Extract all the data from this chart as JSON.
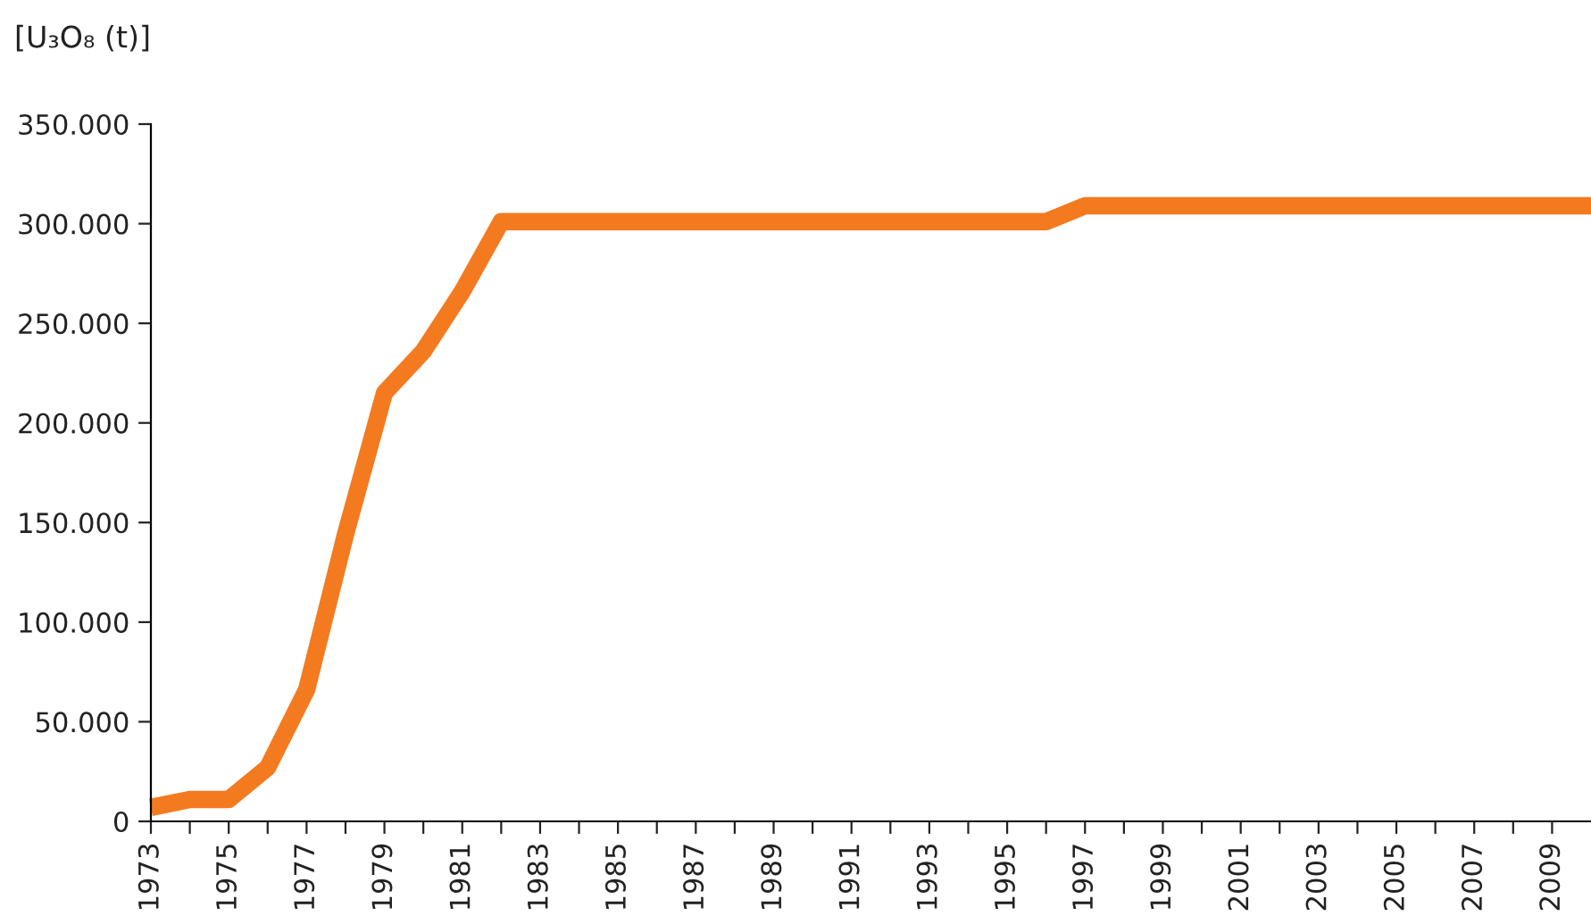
{
  "chart_data": {
    "type": "line",
    "ylabel": "[U₃O₈ (t)]",
    "x": [
      1973,
      1974,
      1975,
      1976,
      1977,
      1978,
      1979,
      1980,
      1981,
      1982,
      1983,
      1984,
      1985,
      1986,
      1987,
      1988,
      1989,
      1990,
      1991,
      1992,
      1993,
      1994,
      1995,
      1996,
      1997,
      1998,
      1999,
      2000,
      2001,
      2002,
      2003,
      2004,
      2005,
      2006,
      2007,
      2008,
      2009,
      2010
    ],
    "series": [
      {
        "color": "#f47a20",
        "values": [
          7000,
          11000,
          11000,
          27000,
          66000,
          144000,
          215000,
          236000,
          266000,
          301000,
          301000,
          301000,
          301000,
          301000,
          301000,
          301000,
          301000,
          301000,
          301000,
          301000,
          301000,
          301000,
          301000,
          301000,
          309000,
          309000,
          309000,
          309000,
          309000,
          309000,
          309000,
          309000,
          309000,
          309000,
          309000,
          309000,
          309000,
          309000
        ]
      }
    ],
    "xlim": [
      1973,
      2010
    ],
    "xticks": [
      1973,
      {
        "value": 1974,
        "label": null
      },
      1975,
      {
        "value": 1976,
        "label": null
      },
      1977,
      {
        "value": 1978,
        "label": null
      },
      1979,
      {
        "value": 1980,
        "label": null
      },
      1981,
      {
        "value": 1982,
        "label": null
      },
      1983,
      {
        "value": 1984,
        "label": null
      },
      1985,
      {
        "value": 1986,
        "label": null
      },
      1987,
      {
        "value": 1988,
        "label": null
      },
      1989,
      {
        "value": 1990,
        "label": null
      },
      1991,
      {
        "value": 1992,
        "label": null
      },
      1993,
      {
        "value": 1994,
        "label": null
      },
      1995,
      {
        "value": 1996,
        "label": null
      },
      1997,
      {
        "value": 1998,
        "label": null
      },
      1999,
      {
        "value": 2000,
        "label": null
      },
      2001,
      {
        "value": 2002,
        "label": null
      },
      2003,
      {
        "value": 2004,
        "label": null
      },
      2005,
      {
        "value": 2006,
        "label": null
      },
      2007,
      {
        "value": 2008,
        "label": null
      },
      2009
    ],
    "ylim": [
      0,
      350000
    ],
    "yticks": [
      0,
      {
        "value": 50000,
        "label": "50.000"
      },
      {
        "value": 100000,
        "label": "100.000"
      },
      {
        "value": 150000,
        "label": "150.000"
      },
      {
        "value": 200000,
        "label": "200.000"
      },
      {
        "value": 250000,
        "label": "250.000"
      },
      {
        "value": 300000,
        "label": "300.000"
      },
      {
        "value": 350000,
        "label": "350.000"
      }
    ],
    "grid": false,
    "legend": false,
    "marker": "none",
    "line_style": "solid"
  }
}
